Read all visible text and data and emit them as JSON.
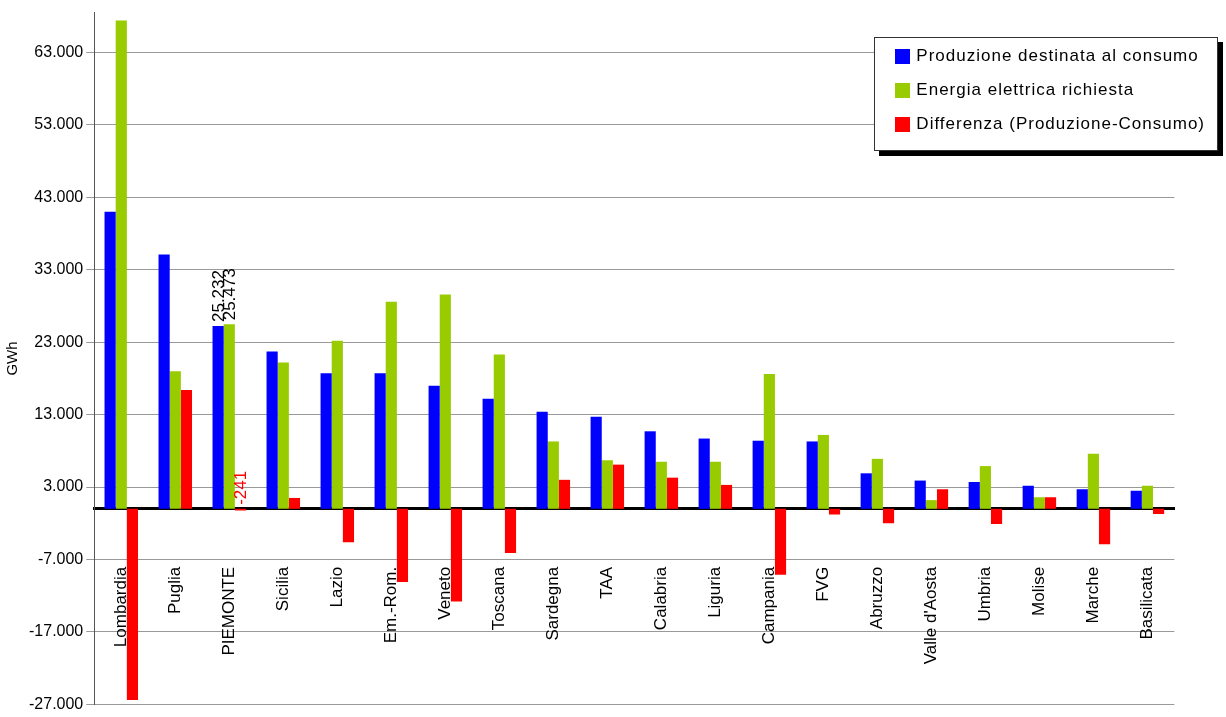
{
  "chart_data": {
    "type": "bar",
    "ylabel": "GWh",
    "categories": [
      "Lombardia",
      "Puglia",
      "PIEMONTE",
      "Sicilia",
      "Lazio",
      "Em.-Rom.",
      "Veneto",
      "Toscana",
      "Sardegna",
      "TAA",
      "Calabria",
      "Liguria",
      "Campania",
      "FVG",
      "Abruzzo",
      "Valle d'Aosta",
      "Umbria",
      "Molise",
      "Marche",
      "Basilicata"
    ],
    "series": [
      {
        "name": "Produzione destinata al consumo",
        "color": "#0000ff",
        "values": [
          41000,
          35100,
          25232,
          21700,
          18700,
          18700,
          17000,
          15200,
          13400,
          12700,
          10700,
          9700,
          9400,
          9300,
          4900,
          3900,
          3700,
          3200,
          2700,
          2500
        ],
        "value_labels": [
          null,
          null,
          "25.232",
          null,
          null,
          null,
          null,
          null,
          null,
          null,
          null,
          null,
          null,
          null,
          null,
          null,
          null,
          null,
          null,
          null
        ]
      },
      {
        "name": "Energia elettrica richiesta",
        "color": "#99cc00",
        "values": [
          67400,
          19000,
          25473,
          20200,
          23200,
          28600,
          29600,
          21300,
          9300,
          6700,
          6500,
          6500,
          18600,
          10200,
          6900,
          1200,
          5900,
          1600,
          7600,
          3200
        ],
        "value_labels": [
          null,
          null,
          "25.473",
          null,
          null,
          null,
          null,
          null,
          null,
          null,
          null,
          null,
          null,
          null,
          null,
          null,
          null,
          null,
          null,
          null
        ]
      },
      {
        "name": "Differenza (Produzione-Consumo)",
        "color": "#ff0000",
        "values": [
          -26400,
          16400,
          -241,
          1500,
          -4600,
          -10100,
          -12800,
          -6100,
          4000,
          6100,
          4300,
          3300,
          -9100,
          -800,
          -2000,
          2700,
          -2100,
          1600,
          -4900,
          -700
        ],
        "value_labels": [
          null,
          null,
          "-241",
          null,
          null,
          null,
          null,
          null,
          null,
          null,
          null,
          null,
          null,
          null,
          null,
          null,
          null,
          null,
          null,
          null
        ]
      }
    ],
    "ylim": [
      -27000,
      68500
    ],
    "yticks": [
      {
        "value": -27000,
        "label": "-27.000"
      },
      {
        "value": -17000,
        "label": "-17.000"
      },
      {
        "value": -7000,
        "label": "-7.000"
      },
      {
        "value": 3000,
        "label": "3.000"
      },
      {
        "value": 13000,
        "label": "13.000"
      },
      {
        "value": 23000,
        "label": "23.000"
      },
      {
        "value": 33000,
        "label": "33.000"
      },
      {
        "value": 43000,
        "label": "43.000"
      },
      {
        "value": 53000,
        "label": "53.000"
      },
      {
        "value": 63000,
        "label": "63.000"
      }
    ],
    "grid": "y",
    "legend": "top right"
  }
}
